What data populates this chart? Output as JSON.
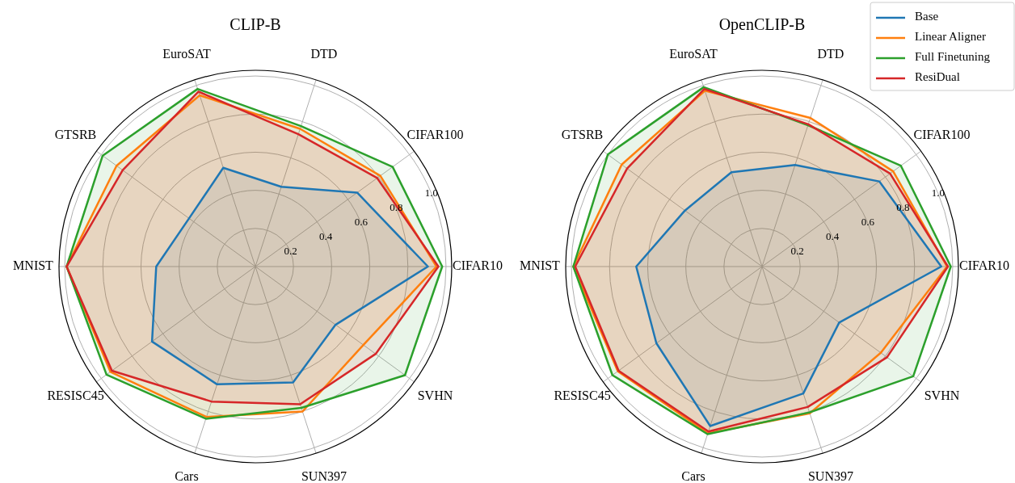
{
  "chart_data": [
    {
      "type": "radar",
      "title": "CLIP-B",
      "categories": [
        "DTD",
        "CIFAR100",
        "CIFAR10",
        "SVHN",
        "SUN397",
        "Cars",
        "RESISC45",
        "MNIST",
        "GTSRB",
        "EuroSAT"
      ],
      "ylim": [
        0,
        1.03
      ],
      "yticks": [
        0.2,
        0.4,
        0.6,
        0.8,
        {
          "value": 1,
          "label": "1.0"
        }
      ],
      "grid": true,
      "series": [
        {
          "color": "#1f77b4",
          "values": [
            0.44,
            0.66,
            0.905,
            0.52,
            0.64,
            0.65,
            0.67,
            0.52,
            0.43,
            0.545
          ]
        },
        {
          "color": "#ff7f0e",
          "values": [
            0.76,
            0.81,
            0.95,
            0.7,
            0.8,
            0.83,
            0.94,
            0.99,
            0.9,
            0.945
          ]
        },
        {
          "color": "#2ca02c",
          "values": [
            0.775,
            0.89,
            0.98,
            0.97,
            0.78,
            0.84,
            0.965,
            0.99,
            0.99,
            0.98
          ]
        },
        {
          "color": "#d62728",
          "values": [
            0.73,
            0.79,
            0.96,
            0.78,
            0.76,
            0.745,
            0.93,
            0.99,
            0.86,
            0.965
          ]
        }
      ]
    },
    {
      "type": "radar",
      "title": "OpenCLIP-B",
      "categories": [
        "DTD",
        "CIFAR100",
        "CIFAR10",
        "SVHN",
        "SUN397",
        "Cars",
        "RESISC45",
        "MNIST",
        "GTSRB",
        "EuroSAT"
      ],
      "ylim": [
        0,
        1.03
      ],
      "yticks": [
        0.2,
        0.4,
        0.6,
        0.8,
        {
          "value": 1,
          "label": "1.0"
        }
      ],
      "grid": true,
      "legend": "top right",
      "series": [
        {
          "name": "Base",
          "color": "#1f77b4",
          "values": [
            0.56,
            0.76,
            0.94,
            0.5,
            0.7,
            0.88,
            0.685,
            0.66,
            0.5,
            0.52
          ]
        },
        {
          "name": "Linear Aligner",
          "color": "#ff7f0e",
          "values": [
            0.82,
            0.85,
            0.97,
            0.77,
            0.81,
            0.92,
            0.935,
            0.99,
            0.91,
            0.97
          ]
        },
        {
          "name": "Full Finetuning",
          "color": "#2ca02c",
          "values": [
            0.78,
            0.9,
            0.99,
            0.98,
            0.805,
            0.925,
            0.97,
            0.99,
            1.0,
            0.99
          ]
        },
        {
          "name": "ResiDual",
          "color": "#d62728",
          "values": [
            0.785,
            0.83,
            0.975,
            0.81,
            0.775,
            0.91,
            0.93,
            0.98,
            0.875,
            0.98
          ]
        }
      ]
    }
  ]
}
